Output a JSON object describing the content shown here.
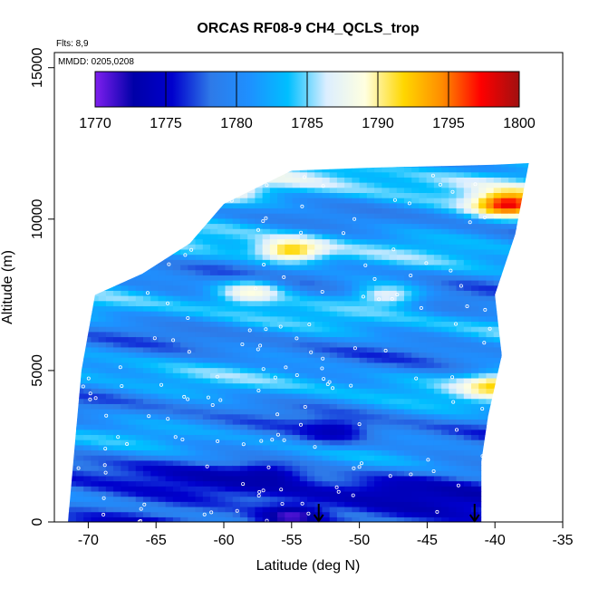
{
  "chart_data": {
    "type": "heatmap",
    "title": "ORCAS RF08-9 CH4_QCLS_trop",
    "notes": {
      "flights": "Flts: 8,9",
      "dates": "MMDD: 0205,0208"
    },
    "xlabel": "Latitude (deg N)",
    "ylabel": "Altitude (m)",
    "xlim": [
      -72.5,
      -35
    ],
    "ylim": [
      0,
      15500
    ],
    "x_ticks": [
      -70,
      -65,
      -60,
      -55,
      -50,
      -45,
      -40,
      -35
    ],
    "y_ticks": [
      0,
      5000,
      10000,
      15000
    ],
    "grid": false,
    "colorbar": {
      "min": 1770,
      "max": 1800,
      "ticks": [
        1770,
        1775,
        1780,
        1785,
        1790,
        1795,
        1800
      ],
      "colors": [
        "#7f1fef",
        "#0000a8",
        "#0000cd",
        "#2e7ae8",
        "#1e90ff",
        "#00bfff",
        "#dceeff",
        "#ffffe0",
        "#ffd700",
        "#ff8c00",
        "#ff0000",
        "#a01010"
      ],
      "position": "top"
    },
    "markers": [
      {
        "type": "arrow",
        "x": -53,
        "y": 0
      },
      {
        "type": "arrow",
        "x": -41.5,
        "y": 0
      }
    ],
    "profile_envelope": [
      [
        -71.5,
        0
      ],
      [
        -70.5,
        5000
      ],
      [
        -69.5,
        7500
      ],
      [
        -66,
        8200
      ],
      [
        -62.5,
        9200
      ],
      [
        -60,
        10500
      ],
      [
        -55,
        11600
      ],
      [
        -49,
        11700
      ],
      [
        -44,
        11750
      ],
      [
        -40,
        11800
      ],
      [
        -37.5,
        11850
      ],
      [
        -38.5,
        9500
      ],
      [
        -40,
        7500
      ],
      [
        -39.5,
        5500
      ],
      [
        -40.5,
        3500
      ],
      [
        -41,
        2000
      ],
      [
        -41,
        0
      ]
    ],
    "features": [
      {
        "lat": -55,
        "alt": 9000,
        "value": 1792
      },
      {
        "lat": -58,
        "alt": 7600,
        "value": 1789
      },
      {
        "lat": -48,
        "alt": 7500,
        "value": 1787
      },
      {
        "lat": -39,
        "alt": 10500,
        "value": 1798
      },
      {
        "lat": -40,
        "alt": 4500,
        "value": 1792
      },
      {
        "lat": -60,
        "alt": 11000,
        "value": 1790
      },
      {
        "lat": -52,
        "alt": 3000,
        "value": 1774
      },
      {
        "lat": -57,
        "alt": 1500,
        "value": 1773
      },
      {
        "lat": -55,
        "alt": 200,
        "value": 1771
      },
      {
        "lat": -47,
        "alt": 1000,
        "value": 1774
      }
    ]
  }
}
